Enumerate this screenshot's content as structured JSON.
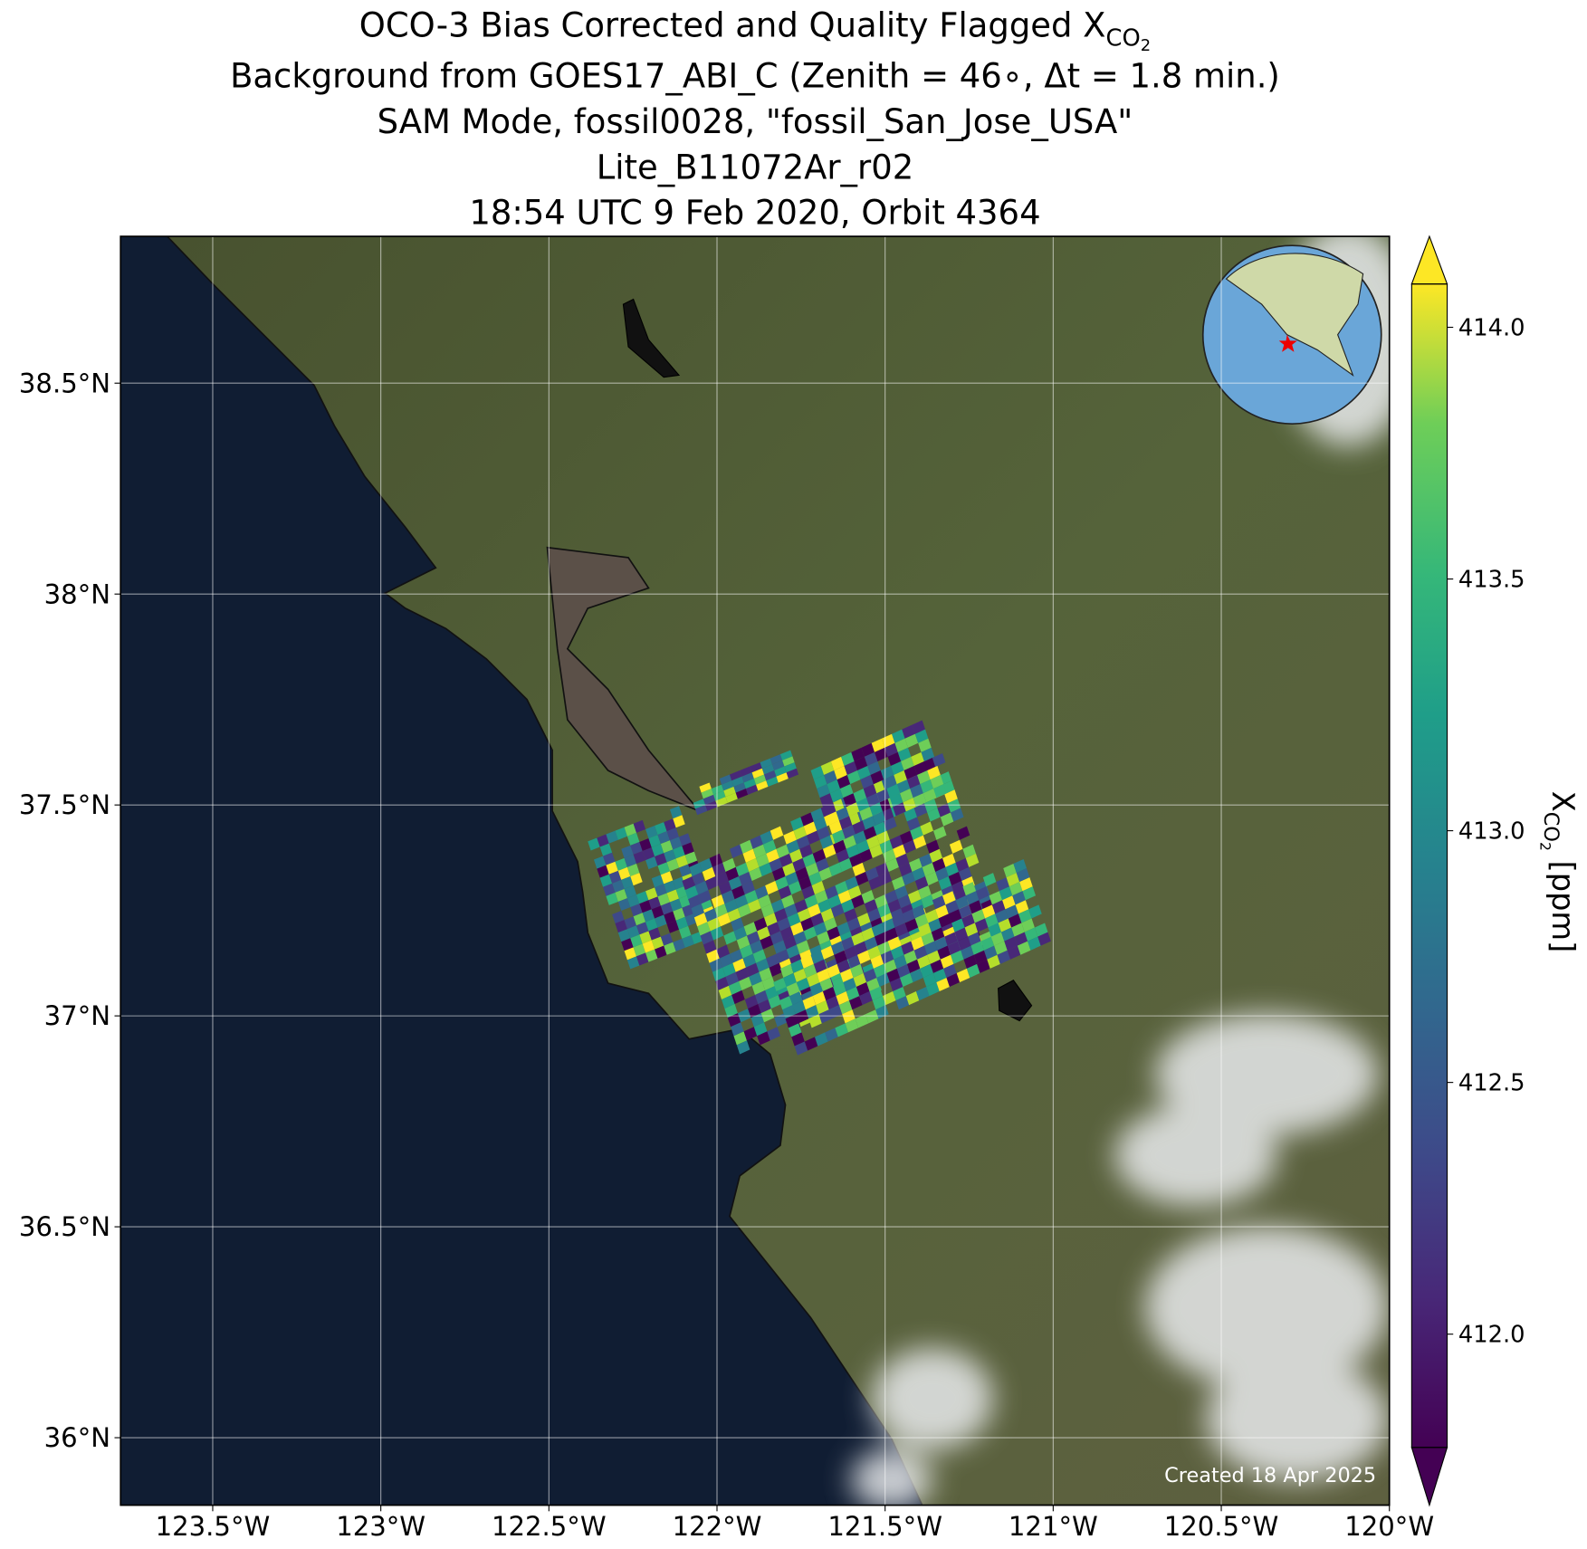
{
  "chart_data": {
    "type": "map",
    "title": {
      "text": "OCO-3 Bias Corrected and Quality Flagged X",
      "sub": "CO",
      "subsub": "2"
    },
    "subtitle_lines": [
      "Background from GOES17_ABI_C (Zenith = 46∘, Δt =  1.8 min.)",
      "SAM Mode, fossil0028, \"fossil_San_Jose_USA\"",
      "Lite_B11072Ar_r02",
      "18:54 UTC 9 Feb 2020, Orbit 4364"
    ],
    "xlim": [
      -123.774,
      -120
    ],
    "ylim": [
      35.84,
      38.848
    ],
    "xticks": [
      {
        "value": -123.5,
        "label": "123.5°W"
      },
      {
        "value": -123,
        "label": "123°W"
      },
      {
        "value": -122.5,
        "label": "122.5°W"
      },
      {
        "value": -122,
        "label": "122°W"
      },
      {
        "value": -121.5,
        "label": "121.5°W"
      },
      {
        "value": -121,
        "label": "121°W"
      },
      {
        "value": -120.5,
        "label": "120.5°W"
      },
      {
        "value": -120,
        "label": "120°W"
      }
    ],
    "yticks": [
      {
        "value": 36,
        "label": "36°N"
      },
      {
        "value": 36.5,
        "label": "36.5°N"
      },
      {
        "value": 37,
        "label": "37°N"
      },
      {
        "value": 37.5,
        "label": "37.5°N"
      },
      {
        "value": 38,
        "label": "38°N"
      },
      {
        "value": 38.5,
        "label": "38.5°N"
      }
    ],
    "grid": true,
    "colorbar": {
      "label": {
        "text": "X",
        "sub": "CO",
        "subsub": "2",
        "unit": " [ppm]"
      },
      "clim": [
        411.775,
        414.086
      ],
      "ticks": [
        {
          "value": 412,
          "label": "412.0"
        },
        {
          "value": 412.5,
          "label": "412.5"
        },
        {
          "value": 413,
          "label": "413.0"
        },
        {
          "value": 413.5,
          "label": "413.5"
        },
        {
          "value": 414,
          "label": "414.0"
        }
      ],
      "colormap": "viridis",
      "extend": "both"
    },
    "credit": "Created 18 Apr 2025"
  }
}
